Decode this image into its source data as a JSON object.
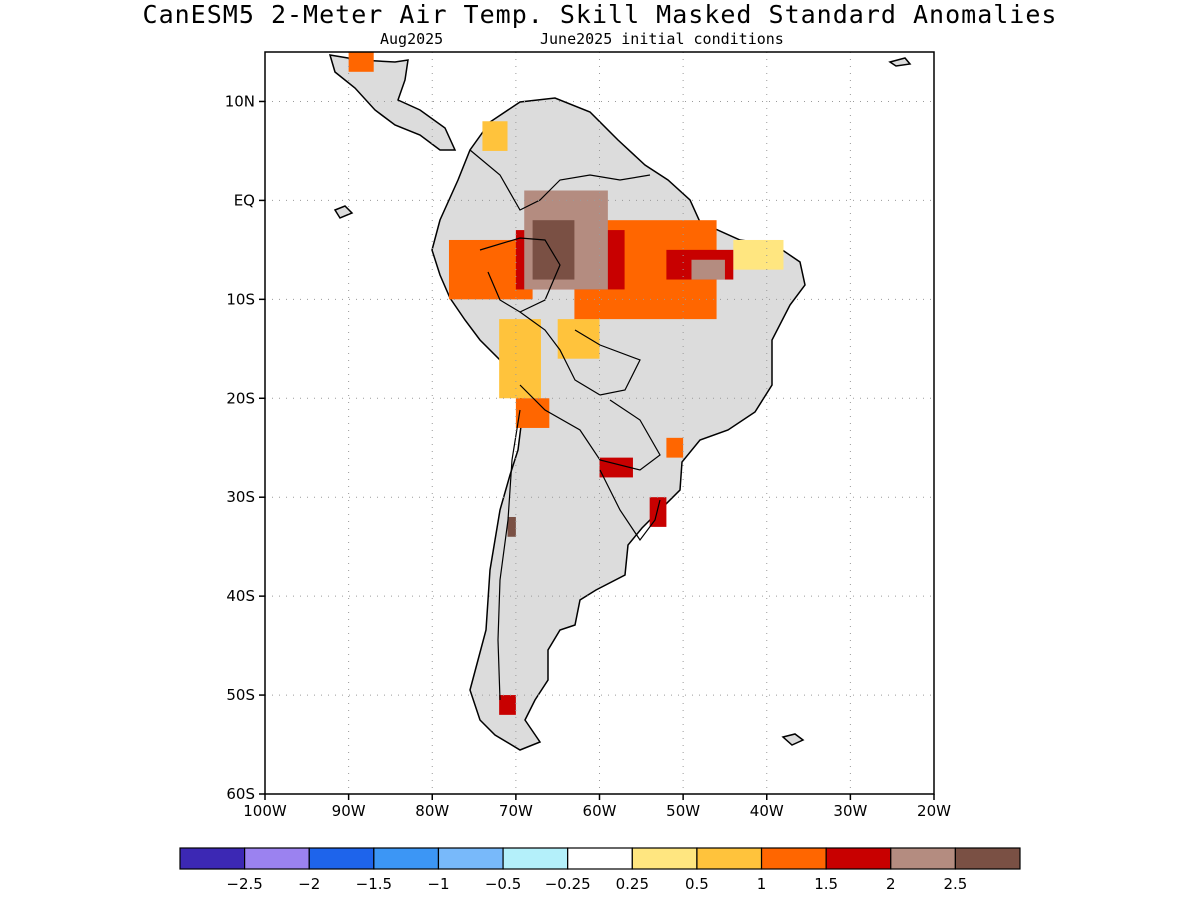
{
  "header": {
    "title": "CanESM5 2-Meter Air Temp. Skill Masked Standard Anomalies",
    "valid_month": "Aug2025",
    "init": "June2025 initial conditions"
  },
  "map": {
    "lon_range": [
      -100,
      -20
    ],
    "lat_range": [
      -60,
      15
    ],
    "lon_ticks": [
      {
        "value": -100,
        "label": "100W"
      },
      {
        "value": -90,
        "label": "90W"
      },
      {
        "value": -80,
        "label": "80W"
      },
      {
        "value": -70,
        "label": "70W"
      },
      {
        "value": -60,
        "label": "60W"
      },
      {
        "value": -50,
        "label": "50W"
      },
      {
        "value": -40,
        "label": "40W"
      },
      {
        "value": -30,
        "label": "30W"
      },
      {
        "value": -20,
        "label": "20W"
      }
    ],
    "lat_ticks": [
      {
        "value": 10,
        "label": "10N"
      },
      {
        "value": 0,
        "label": "EQ"
      },
      {
        "value": -10,
        "label": "10S"
      },
      {
        "value": -20,
        "label": "20S"
      },
      {
        "value": -30,
        "label": "30S"
      },
      {
        "value": -40,
        "label": "40S"
      },
      {
        "value": -50,
        "label": "50S"
      },
      {
        "value": -60,
        "label": "60S"
      }
    ],
    "masked_color": "#dcdcdc",
    "anomaly_regions": [
      {
        "level": 0.5,
        "color": "#ffc33c",
        "lon": [
          -72,
          -67
        ],
        "lat": [
          -12,
          -20
        ]
      },
      {
        "level": 0.5,
        "color": "#ffc33c",
        "lon": [
          -65,
          -60
        ],
        "lat": [
          -12,
          -16
        ]
      },
      {
        "level": 0.5,
        "color": "#ffc33c",
        "lon": [
          -74,
          -71
        ],
        "lat": [
          8,
          5
        ]
      },
      {
        "level": 0.25,
        "color": "#ffe680",
        "lon": [
          -44,
          -38
        ],
        "lat": [
          -4,
          -7
        ]
      },
      {
        "level": 1.0,
        "color": "#ff6600",
        "lon": [
          -78,
          -68
        ],
        "lat": [
          -4,
          -10
        ]
      },
      {
        "level": 1.0,
        "color": "#ff6600",
        "lon": [
          -63,
          -46
        ],
        "lat": [
          -2,
          -12
        ]
      },
      {
        "level": 1.0,
        "color": "#ff6600",
        "lon": [
          -70,
          -66
        ],
        "lat": [
          -20,
          -23
        ]
      },
      {
        "level": 1.0,
        "color": "#ff6600",
        "lon": [
          -52,
          -50
        ],
        "lat": [
          -24,
          -26
        ]
      },
      {
        "level": 1.0,
        "color": "#ff6600",
        "lon": [
          -90,
          -87
        ],
        "lat": [
          15,
          13
        ]
      },
      {
        "level": 1.5,
        "color": "#c80000",
        "lon": [
          -70,
          -57
        ],
        "lat": [
          -3,
          -9
        ]
      },
      {
        "level": 1.5,
        "color": "#c80000",
        "lon": [
          -52,
          -44
        ],
        "lat": [
          -5,
          -8
        ]
      },
      {
        "level": 1.5,
        "color": "#c80000",
        "lon": [
          -60,
          -56
        ],
        "lat": [
          -26,
          -28
        ]
      },
      {
        "level": 1.5,
        "color": "#c80000",
        "lon": [
          -54,
          -52
        ],
        "lat": [
          -30,
          -33
        ]
      },
      {
        "level": 1.5,
        "color": "#c80000",
        "lon": [
          -72,
          -70
        ],
        "lat": [
          -50,
          -52
        ]
      },
      {
        "level": 2.0,
        "color": "#b48c80",
        "lon": [
          -69,
          -59
        ],
        "lat": [
          1,
          -9
        ]
      },
      {
        "level": 2.0,
        "color": "#b48c80",
        "lon": [
          -49,
          -45
        ],
        "lat": [
          -6,
          -8
        ]
      },
      {
        "level": 2.5,
        "color": "#7a5044",
        "lon": [
          -68,
          -63
        ],
        "lat": [
          -2,
          -8
        ]
      },
      {
        "level": 2.5,
        "color": "#7a5044",
        "lon": [
          -71,
          -70
        ],
        "lat": [
          -32,
          -34
        ]
      }
    ]
  },
  "colorbar": {
    "colors": [
      "#3c28b4",
      "#9b82f0",
      "#1e64eb",
      "#3c96f5",
      "#78b9fa",
      "#b4f0fa",
      "#ffffff",
      "#ffe680",
      "#ffc33c",
      "#ff6600",
      "#c80000",
      "#b48c80",
      "#7a5044"
    ],
    "labels": [
      "-2.5",
      "-2",
      "-1.5",
      "-1",
      "-0.5",
      "-0.25",
      "0.25",
      "0.5",
      "1",
      "1.5",
      "2",
      "2.5"
    ]
  }
}
